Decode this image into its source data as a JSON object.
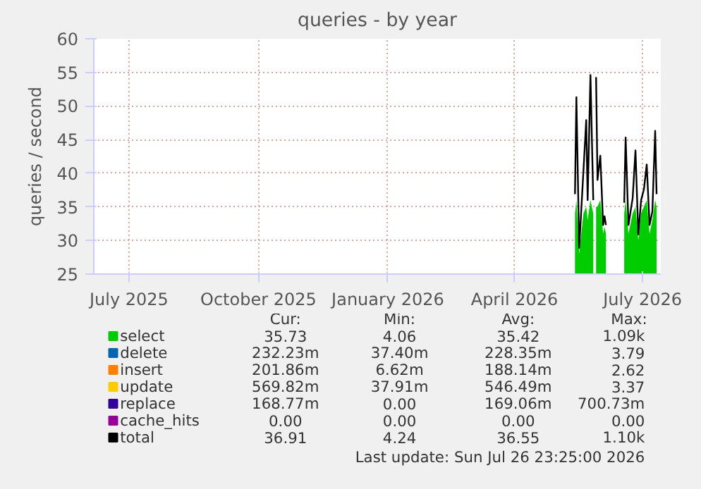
{
  "chart_data": {
    "type": "area",
    "title": "queries - by year",
    "ylabel": "queries / second",
    "x": [
      "2026-05-14",
      "2026-05-15",
      "2026-05-17",
      "2026-05-20",
      "2026-05-22",
      "2026-05-23",
      "2026-05-25",
      "2026-05-27",
      "2026-05-28",
      "2026-05-29",
      "2026-05-30",
      "2026-06-01",
      "2026-06-03",
      "2026-06-04",
      "2026-06-05",
      "2026-06-06",
      "2026-06-17",
      "2026-06-18",
      "2026-06-19",
      "2026-06-21",
      "2026-06-24",
      "2026-06-26",
      "2026-06-28",
      "2026-06-30",
      "2026-07-02",
      "2026-07-04",
      "2026-07-06",
      "2026-07-08",
      "2026-07-10",
      "2026-07-11"
    ],
    "series": [
      {
        "name": "select",
        "color": "#00cc00",
        "values": [
          34,
          36,
          28,
          34,
          35,
          33,
          36,
          34,
          null,
          35,
          35,
          36,
          31,
          32,
          31,
          null,
          null,
          34,
          36,
          31,
          34,
          35,
          30,
          34,
          35,
          36,
          31,
          33,
          36,
          35
        ]
      },
      {
        "name": "delete",
        "color": "#0066b3",
        "values": [
          null,
          null,
          null,
          null,
          null,
          null,
          null,
          null,
          null,
          null,
          null,
          null,
          null,
          null,
          null,
          null,
          null,
          null,
          null,
          null,
          null,
          null,
          null,
          null,
          null,
          null,
          null,
          null,
          null,
          null
        ]
      },
      {
        "name": "insert",
        "color": "#ff8000",
        "values": [
          null,
          null,
          null,
          null,
          null,
          null,
          null,
          null,
          null,
          null,
          null,
          null,
          null,
          null,
          null,
          null,
          null,
          null,
          null,
          null,
          null,
          null,
          null,
          null,
          null,
          null,
          null,
          null,
          null,
          null
        ]
      },
      {
        "name": "update",
        "color": "#ffcc00",
        "values": [
          null,
          null,
          null,
          null,
          null,
          null,
          null,
          null,
          null,
          null,
          null,
          null,
          null,
          null,
          null,
          null,
          null,
          null,
          null,
          null,
          null,
          null,
          null,
          null,
          null,
          null,
          null,
          null,
          null,
          null
        ]
      },
      {
        "name": "replace",
        "color": "#330099",
        "values": [
          null,
          null,
          null,
          null,
          null,
          null,
          null,
          null,
          null,
          null,
          null,
          null,
          null,
          null,
          null,
          null,
          null,
          null,
          null,
          null,
          null,
          null,
          null,
          null,
          null,
          null,
          null,
          null,
          null,
          null
        ]
      },
      {
        "name": "cache_hits",
        "color": "#990099",
        "values": [
          null,
          null,
          null,
          null,
          null,
          null,
          null,
          null,
          null,
          null,
          null,
          null,
          null,
          null,
          null,
          null,
          null,
          null,
          null,
          null,
          null,
          null,
          null,
          null,
          null,
          null,
          null,
          null,
          null,
          null
        ]
      },
      {
        "name": "total",
        "type": "line",
        "color": "#000000",
        "values": [
          36.9,
          51.3,
          28.9,
          40.3,
          47.9,
          36,
          54.6,
          36,
          null,
          54.3,
          39,
          42.6,
          32.3,
          33.6,
          32.3,
          null,
          null,
          35.6,
          45.3,
          32.3,
          36.3,
          43.4,
          30.9,
          36,
          37.6,
          41.3,
          32.3,
          34.3,
          46.3,
          36.9
        ]
      }
    ],
    "xlim": [
      "2025-06-06",
      "2026-07-14"
    ],
    "xticks": [
      {
        "value": "2025-07-01",
        "label": "July 2025"
      },
      {
        "value": "2025-10-01",
        "label": "October 2025"
      },
      {
        "value": "2026-01-01",
        "label": "January 2026"
      },
      {
        "value": "2026-04-01",
        "label": "April 2026"
      },
      {
        "value": "2026-07-01",
        "label": "July 2026"
      }
    ],
    "ylim": [
      25,
      60
    ],
    "yticks": [
      25,
      30,
      35,
      40,
      45,
      50,
      55,
      60
    ],
    "grid": true,
    "legend": "bottom",
    "annotations": [
      "Cur:",
      "Min:",
      "Avg:",
      "Max:",
      "35.73",
      "4.06",
      "35.42",
      "1.09k",
      "232.23m",
      "37.40m",
      "228.35m",
      "3.79",
      "201.86m",
      "6.62m",
      "188.14m",
      "2.62",
      "569.82m",
      "37.91m",
      "546.49m",
      "3.37",
      "168.77m",
      "0.00",
      "169.06m",
      "700.73m",
      "0.00",
      "0.00",
      "0.00",
      "0.00",
      "36.91",
      "4.24",
      "36.55",
      "1.10k",
      "Last update: Sun Jul 26 23:25:00 2026"
    ]
  }
}
